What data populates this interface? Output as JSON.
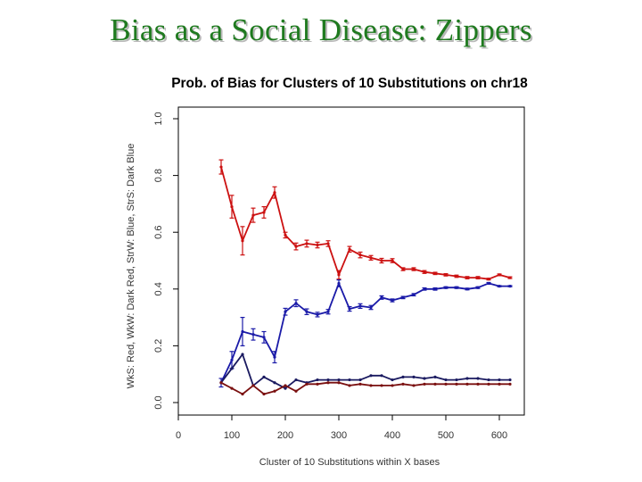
{
  "slide": {
    "title": "Bias as a Social Disease: Zippers"
  },
  "chart_data": {
    "type": "line",
    "title": "Prob. of Bias for Clusters of 10 Substitutions on chr18",
    "xlabel": "Cluster of 10 Substitutions within X bases",
    "ylabel": "WkS: Red, WkW: Dark Red, StrW: Blue, StrS: Dark Blue",
    "xlim": [
      0,
      640
    ],
    "ylim": [
      0,
      1.0
    ],
    "xticks": [
      "0",
      "100",
      "200",
      "300",
      "400",
      "500",
      "600"
    ],
    "yticks": [
      "0.0",
      "0.2",
      "0.4",
      "0.6",
      "0.8",
      "1.0"
    ],
    "x": [
      80,
      100,
      120,
      140,
      160,
      180,
      200,
      220,
      240,
      260,
      280,
      300,
      320,
      340,
      360,
      380,
      400,
      420,
      440,
      460,
      480,
      500,
      520,
      540,
      560,
      580,
      600,
      620
    ],
    "series": [
      {
        "name": "WkS (Red)",
        "color": "#cc1111",
        "values": [
          0.83,
          0.69,
          0.57,
          0.66,
          0.67,
          0.74,
          0.59,
          0.55,
          0.56,
          0.555,
          0.56,
          0.45,
          0.54,
          0.52,
          0.51,
          0.5,
          0.5,
          0.47,
          0.47,
          0.46,
          0.455,
          0.45,
          0.445,
          0.44,
          0.44,
          0.435,
          0.45,
          0.44
        ],
        "errors": [
          0.025,
          0.04,
          0.05,
          0.025,
          0.02,
          0.02,
          0.01,
          0.012,
          0.012,
          0.01,
          0.01,
          0.015,
          0.01,
          0.01,
          0.008,
          0.008,
          0.007,
          0.005,
          0.005,
          0.005,
          0.004,
          0.004,
          0.004,
          0.004,
          0.004,
          0.003,
          0.003,
          0.003
        ]
      },
      {
        "name": "StrW (Blue)",
        "color": "#1a1aa8",
        "values": [
          0.07,
          0.15,
          0.25,
          0.24,
          0.23,
          0.16,
          0.32,
          0.35,
          0.32,
          0.31,
          0.32,
          0.42,
          0.33,
          0.34,
          0.335,
          0.37,
          0.36,
          0.37,
          0.38,
          0.4,
          0.4,
          0.405,
          0.405,
          0.4,
          0.405,
          0.42,
          0.41,
          0.41
        ],
        "errors": [
          0.015,
          0.03,
          0.05,
          0.02,
          0.02,
          0.02,
          0.012,
          0.012,
          0.01,
          0.008,
          0.008,
          0.012,
          0.008,
          0.008,
          0.007,
          0.006,
          0.005,
          0.004,
          0.004,
          0.004,
          0.004,
          0.003,
          0.003,
          0.003,
          0.003,
          0.003,
          0.002,
          0.002
        ]
      },
      {
        "name": "StrS (Dark Blue)",
        "color": "#1a1a60",
        "values": [
          0.07,
          0.12,
          0.17,
          0.06,
          0.09,
          0.07,
          0.05,
          0.08,
          0.07,
          0.08,
          0.08,
          0.08,
          0.08,
          0.08,
          0.095,
          0.095,
          0.08,
          0.09,
          0.09,
          0.085,
          0.09,
          0.08,
          0.08,
          0.085,
          0.085,
          0.08,
          0.08,
          0.08
        ]
      },
      {
        "name": "WkW (Dark Red)",
        "color": "#7a1010",
        "values": [
          0.07,
          0.05,
          0.03,
          0.06,
          0.03,
          0.04,
          0.06,
          0.04,
          0.065,
          0.065,
          0.07,
          0.07,
          0.06,
          0.065,
          0.06,
          0.06,
          0.06,
          0.065,
          0.06,
          0.065,
          0.065,
          0.065,
          0.065,
          0.065,
          0.065,
          0.065,
          0.065,
          0.065
        ]
      }
    ]
  }
}
